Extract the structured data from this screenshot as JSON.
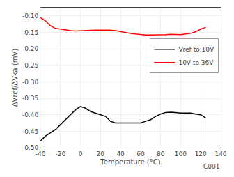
{
  "chart_data": {
    "type": "line",
    "title": "",
    "xlabel": "Temperature (°C)",
    "ylabel": "ΔVref/ΔVka (mV)",
    "x": [
      -40,
      -35,
      -30,
      -25,
      -20,
      -15,
      -10,
      -5,
      0,
      5,
      10,
      15,
      20,
      25,
      30,
      35,
      40,
      45,
      50,
      55,
      60,
      65,
      70,
      75,
      80,
      85,
      90,
      95,
      100,
      105,
      110,
      115,
      120,
      125
    ],
    "series": [
      {
        "name": "Vref to 10V",
        "color": "#000000",
        "values": [
          -0.48,
          -0.465,
          -0.455,
          -0.445,
          -0.43,
          -0.415,
          -0.4,
          -0.385,
          -0.375,
          -0.38,
          -0.39,
          -0.395,
          -0.4,
          -0.405,
          -0.42,
          -0.425,
          -0.425,
          -0.425,
          -0.425,
          -0.425,
          -0.425,
          -0.42,
          -0.415,
          -0.405,
          -0.398,
          -0.393,
          -0.392,
          -0.393,
          -0.395,
          -0.395,
          -0.395,
          -0.398,
          -0.4,
          -0.41
        ]
      },
      {
        "name": "10V to 36V",
        "color": "#ff0000",
        "values": [
          -0.105,
          -0.115,
          -0.13,
          -0.138,
          -0.14,
          -0.143,
          -0.145,
          -0.146,
          -0.145,
          -0.144,
          -0.143,
          -0.143,
          -0.143,
          -0.143,
          -0.143,
          -0.145,
          -0.148,
          -0.151,
          -0.153,
          -0.155,
          -0.157,
          -0.158,
          -0.158,
          -0.158,
          -0.158,
          -0.157,
          -0.156,
          -0.156,
          -0.157,
          -0.155,
          -0.153,
          -0.148,
          -0.14,
          -0.135
        ]
      }
    ],
    "xlim": [
      -40,
      140
    ],
    "ylim": [
      -0.5,
      -0.075
    ],
    "xticks": [
      -40,
      -20,
      0,
      20,
      40,
      60,
      80,
      100,
      120,
      140
    ],
    "yticks": [
      {
        "value": -0.5,
        "label": "-0.50"
      },
      {
        "value": -0.45,
        "label": "-0.45"
      },
      {
        "value": -0.4,
        "label": "-0.40"
      },
      {
        "value": -0.35,
        "label": "-0.35"
      },
      {
        "value": -0.3,
        "label": "-0.30"
      },
      {
        "value": -0.25,
        "label": "-0.25"
      },
      {
        "value": -0.2,
        "label": "-0.20"
      },
      {
        "value": -0.15,
        "label": "-0.15"
      },
      {
        "value": -0.1,
        "label": "-0.10"
      }
    ],
    "annotations": [
      "C001"
    ],
    "grid": true,
    "legend": "upper right"
  }
}
